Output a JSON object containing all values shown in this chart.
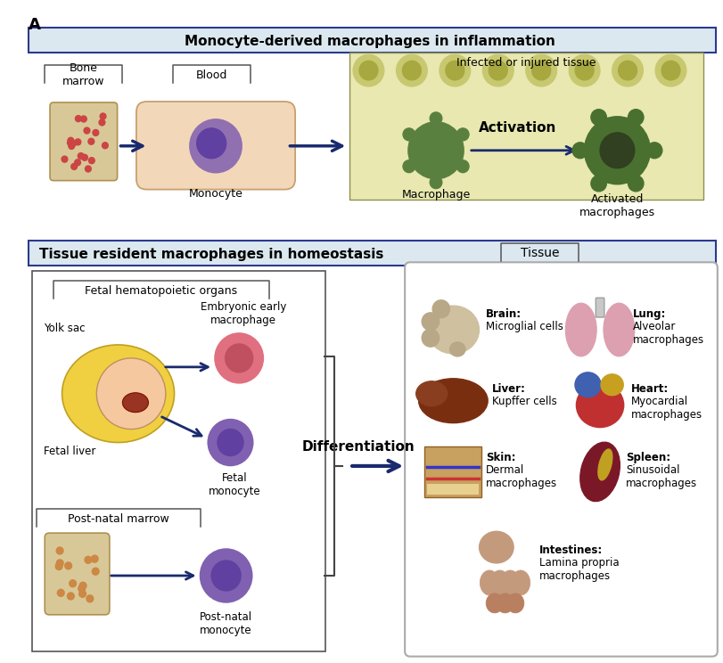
{
  "fig_width": 8.12,
  "fig_height": 7.44,
  "dpi": 100,
  "bg_color": "#ffffff",
  "panel_label": "A",
  "arrow_color": "#1a2a6e",
  "header_bg": "#dce8f0",
  "header_border": "#2a3a8e",
  "box_border": "#555555",
  "infected_tissue_bg": "#e8e8b0",
  "cell_row_color": "#c8c870",
  "cell_row_inner": "#a8a850",
  "section1": {
    "title": "Monocyte-derived macrophages in inflammation",
    "bone_marrow_label": "Bone\nmarrow",
    "blood_label": "Blood",
    "monocyte_label": "Monocyte",
    "infected_label": "Infected or injured tissue",
    "macrophage_label": "Macrophage",
    "activation_label": "Activation",
    "activated_label": "Activated\nmacrophages"
  },
  "section2": {
    "title": "Tissue resident macrophages in homeostasis",
    "fetal_organs_label": "Fetal hematopoietic organs",
    "yolk_sac_label": "Yolk sac",
    "embryonic_label": "Embryonic early\nmacrophage",
    "fetal_liver_label": "Fetal liver",
    "fetal_mono_label": "Fetal\nmonocyte",
    "postnatal_marrow_label": "Post-natal marrow",
    "postnatal_mono_label": "Post-natal\nmonocyte",
    "differentiation_label": "Differentiation",
    "tissue_label": "Tissue"
  },
  "tissue_organs": [
    {
      "name": "Brain:",
      "sub": "Microglial cells",
      "col": 0,
      "row": 0
    },
    {
      "name": "Lung:",
      "sub": "Alveolar\nmacrophages",
      "col": 1,
      "row": 0
    },
    {
      "name": "Liver:",
      "sub": "Kupffer cells",
      "col": 0,
      "row": 1
    },
    {
      "name": "Heart:",
      "sub": "Myocardial\nmacrophages",
      "col": 1,
      "row": 1
    },
    {
      "name": "Skin:",
      "sub": "Dermal\nmacrophages",
      "col": 0,
      "row": 2
    },
    {
      "name": "Spleen:",
      "sub": "Sinusoidal\nmacrophages",
      "col": 1,
      "row": 2
    },
    {
      "name": "Intestines:",
      "sub": "Lamina propria\nmacrophages",
      "col": 0,
      "row": 3
    }
  ]
}
